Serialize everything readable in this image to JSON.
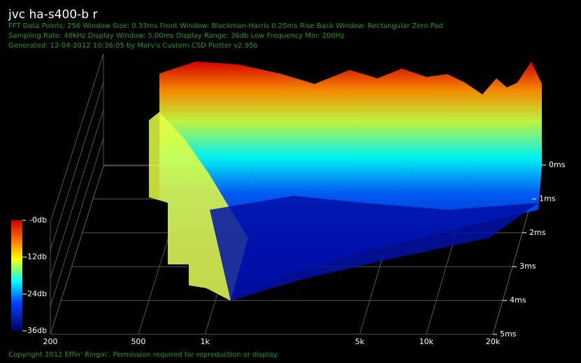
{
  "chart_data": {
    "type": "waterfall",
    "title": "jvc ha-s400-b r",
    "info_lines": [
      "FFT Data Points: 256  Window Size: 0.33ms   Front Window: Blackman-Harris 0.25ms Rise   Back Window: Rectangular Zero Pad",
      "Sampling Rate: 48kHz  Display Window: 5.00ms   Display Range: 36db  Low Frequency Min: 200Hz",
      "Generated: 12-04-2012 10:36:05 by Marv's Custom CSD Plotter v2.95b"
    ],
    "footer": "Copyright 2012 Effin' Ringin'. Permission required for reproduction or display.",
    "xscale": "log",
    "xlim": [
      200,
      20000
    ],
    "xticks": [
      200,
      500,
      {
        "value": 1000,
        "label": "1k"
      },
      {
        "value": 5000,
        "label": "5k"
      },
      {
        "value": 10000,
        "label": "10k"
      },
      {
        "value": 20000,
        "label": "20k"
      }
    ],
    "tlim": [
      0,
      5
    ],
    "tticks": [
      {
        "value": 0,
        "label": "0ms"
      },
      {
        "value": 1,
        "label": "1ms"
      },
      {
        "value": 2,
        "label": "2ms"
      },
      {
        "value": 3,
        "label": "3ms"
      },
      {
        "value": 4,
        "label": "4ms"
      },
      {
        "value": 5,
        "label": "5ms"
      }
    ],
    "zlim": [
      -36,
      0
    ],
    "zticks": [
      {
        "value": 0,
        "label": "-0db"
      },
      {
        "value": -12,
        "label": "-12db"
      },
      {
        "value": -24,
        "label": "-24db"
      },
      {
        "value": -36,
        "label": "-36db"
      }
    ]
  }
}
